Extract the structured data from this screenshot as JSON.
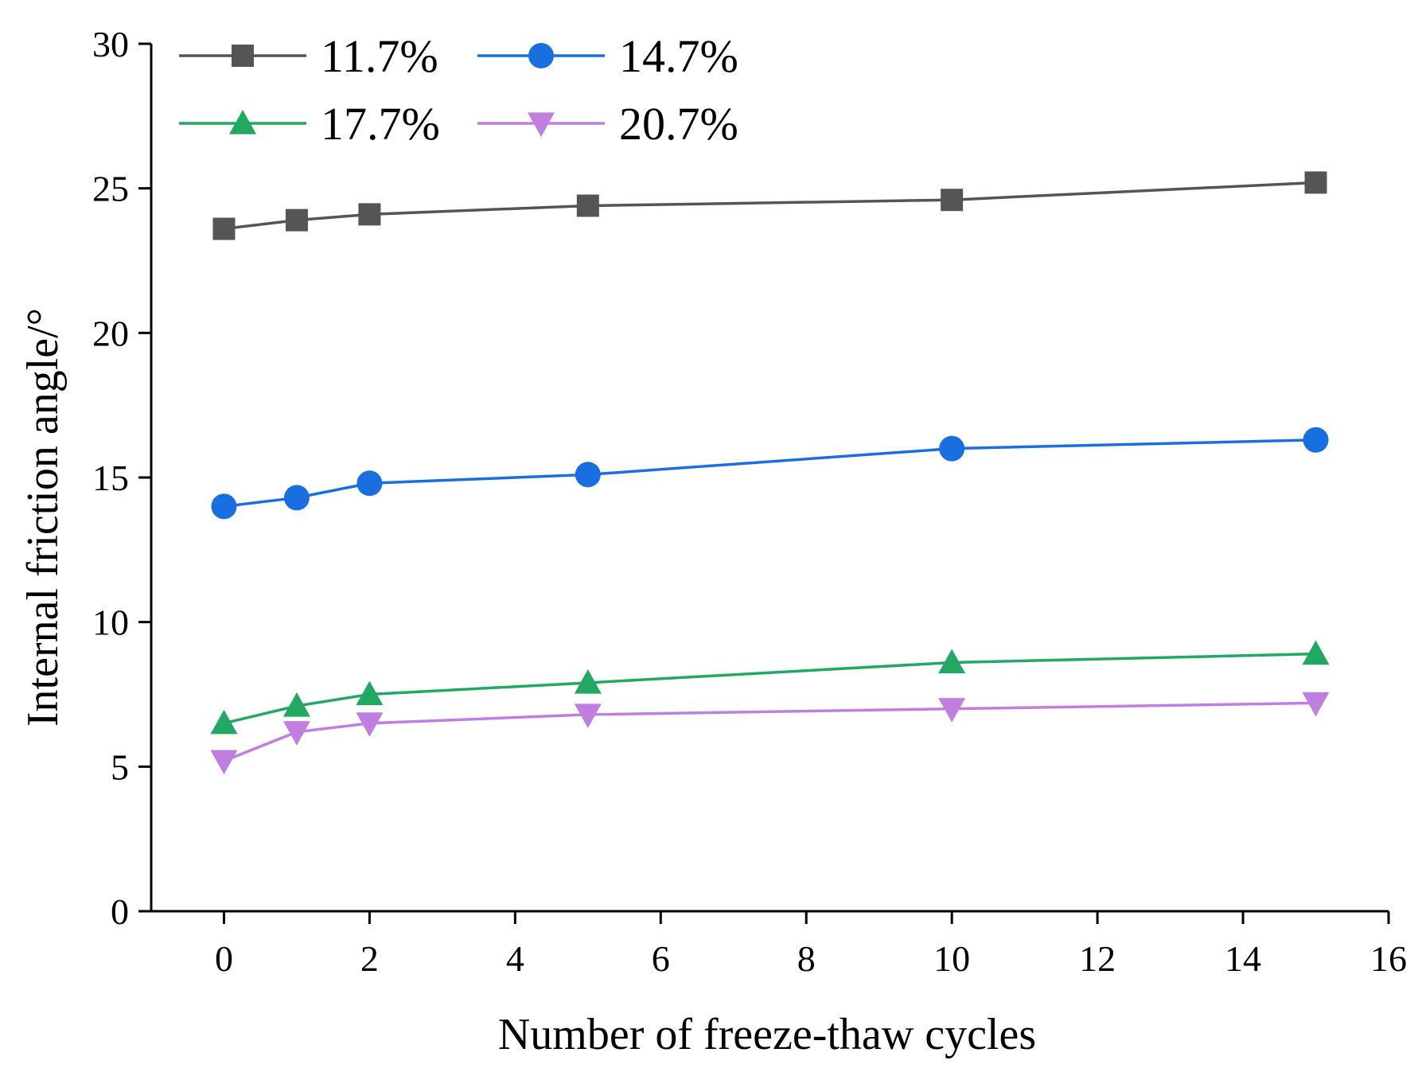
{
  "chart_data": {
    "type": "line",
    "title": "",
    "xlabel": "Number of freeze-thaw cycles",
    "ylabel": "Internal friction angle/°",
    "xlim": [
      -1,
      16
    ],
    "ylim": [
      0,
      30
    ],
    "xticks": [
      0,
      2,
      4,
      6,
      8,
      10,
      12,
      14,
      16
    ],
    "yticks": [
      0,
      5,
      10,
      15,
      20,
      25,
      30
    ],
    "grid": false,
    "legend_position": "top-left",
    "x": [
      0,
      1,
      2,
      5,
      10,
      15
    ],
    "series": [
      {
        "name": "11.7%",
        "color": "#555555",
        "marker": "square",
        "values": [
          23.6,
          23.9,
          24.1,
          24.4,
          24.6,
          25.2
        ]
      },
      {
        "name": "14.7%",
        "color": "#1a6fe0",
        "marker": "circle",
        "values": [
          14.0,
          14.3,
          14.8,
          15.1,
          16.0,
          16.3
        ]
      },
      {
        "name": "17.7%",
        "color": "#22a862",
        "marker": "triangle-up",
        "values": [
          6.5,
          7.1,
          7.5,
          7.9,
          8.6,
          8.9
        ]
      },
      {
        "name": "20.7%",
        "color": "#c07fe0",
        "marker": "triangle-down",
        "values": [
          5.2,
          6.2,
          6.5,
          6.8,
          7.0,
          7.2
        ]
      }
    ]
  }
}
